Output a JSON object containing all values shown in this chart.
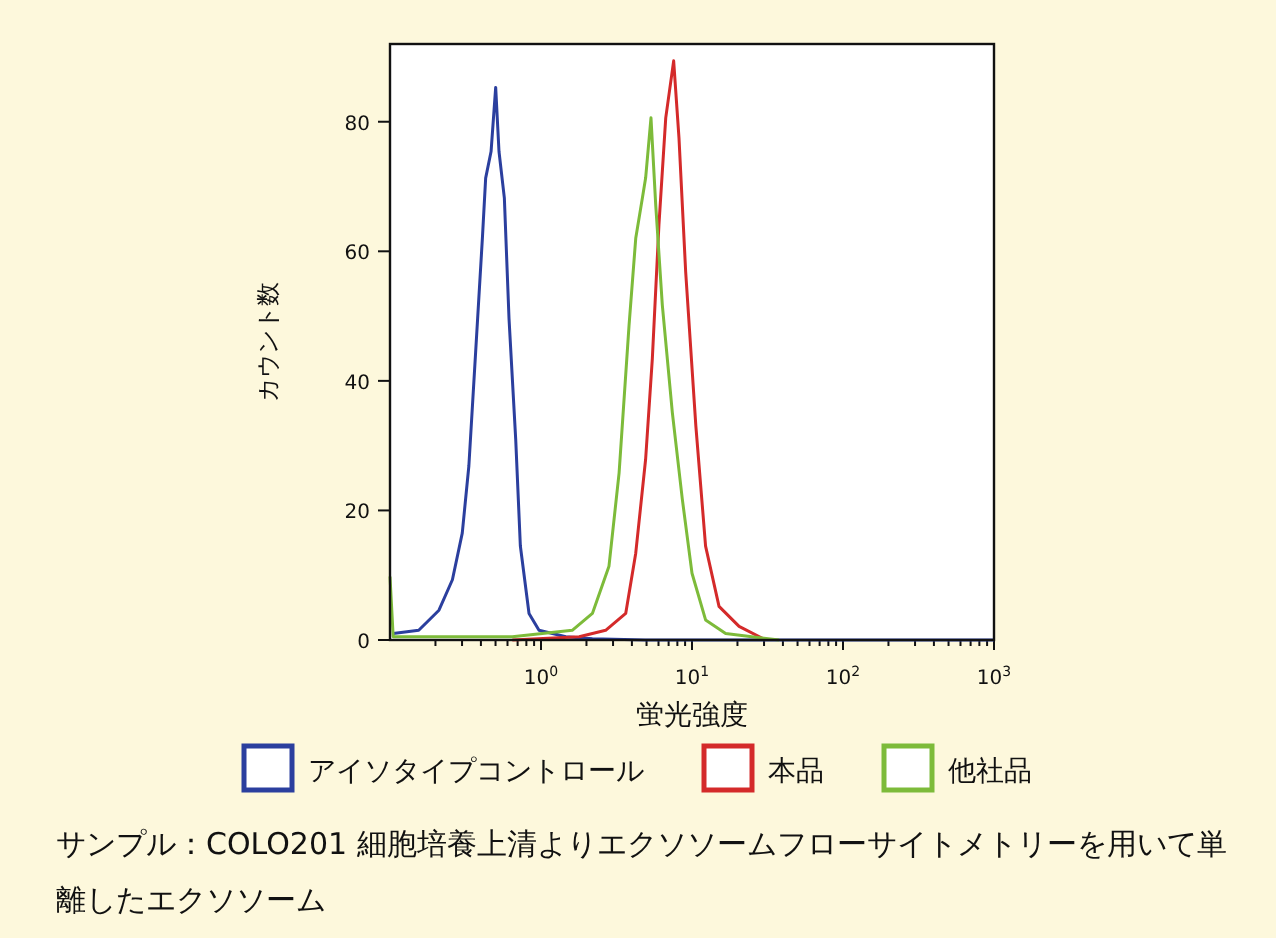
{
  "chart_data": {
    "type": "line",
    "xlabel": "蛍光強度",
    "ylabel": "カウント数",
    "log": "x",
    "legend": "bottom",
    "marker": "none",
    "line_style": "solid",
    "xlim": [
      0.1,
      1000
    ],
    "ylim": [
      0,
      92
    ],
    "xticks": [
      {
        "value": 0.2,
        "label": null
      },
      {
        "value": 0.3,
        "label": null
      },
      {
        "value": 0.4,
        "label": null
      },
      {
        "value": 0.5,
        "label": null
      },
      {
        "value": 0.6,
        "label": null
      },
      {
        "value": 0.7,
        "label": null
      },
      {
        "value": 0.8,
        "label": null
      },
      {
        "value": 0.9,
        "label": null
      },
      {
        "value": 1,
        "label": "10$^{0}$"
      },
      {
        "value": 2,
        "label": null
      },
      {
        "value": 3,
        "label": null
      },
      {
        "value": 4,
        "label": null
      },
      {
        "value": 5,
        "label": null
      },
      {
        "value": 6,
        "label": null
      },
      {
        "value": 7,
        "label": null
      },
      {
        "value": 8,
        "label": null
      },
      {
        "value": 9,
        "label": null
      },
      {
        "value": 10,
        "label": "10$^{1}$"
      },
      {
        "value": 20,
        "label": null
      },
      {
        "value": 30,
        "label": null
      },
      {
        "value": 40,
        "label": null
      },
      {
        "value": 50,
        "label": null
      },
      {
        "value": 60,
        "label": null
      },
      {
        "value": 70,
        "label": null
      },
      {
        "value": 80,
        "label": null
      },
      {
        "value": 90,
        "label": null
      },
      {
        "value": 100,
        "label": "10$^{2}$"
      },
      {
        "value": 200,
        "label": null
      },
      {
        "value": 300,
        "label": null
      },
      {
        "value": 400,
        "label": null
      },
      {
        "value": 500,
        "label": null
      },
      {
        "value": 600,
        "label": null
      },
      {
        "value": 700,
        "label": null
      },
      {
        "value": 800,
        "label": null
      },
      {
        "value": 900,
        "label": null
      },
      {
        "value": 1000,
        "label": "10$^{3}$"
      }
    ],
    "yticks": [
      0,
      20,
      40,
      60,
      80
    ],
    "series": [
      {
        "name": "アイソタイプコントロール",
        "color": "#2b3f9e",
        "x": [
          0.105,
          0.155,
          0.211,
          0.259,
          0.301,
          0.333,
          0.369,
          0.409,
          0.43,
          0.467,
          0.501,
          0.527,
          0.572,
          0.614,
          0.68,
          0.73,
          0.833,
          0.97,
          1.46,
          2.19,
          4.9,
          1000
        ],
        "values": [
          1,
          1.5,
          4.6,
          9.3,
          16.5,
          26.9,
          44.4,
          62,
          71.3,
          75.4,
          85.3,
          75.4,
          68.2,
          49.6,
          31,
          14.5,
          4.1,
          1.5,
          0.5,
          0.2,
          0,
          0
        ]
      },
      {
        "name": "本品",
        "color": "#d42a2a",
        "x": [
          0.646,
          1.79,
          2.68,
          3.64,
          4.24,
          4.93,
          5.46,
          6.04,
          6.7,
          7.56,
          8.2,
          9.08,
          10.6,
          12.3,
          15.1,
          20.5,
          30.8
        ],
        "values": [
          0,
          0.5,
          1.5,
          4.1,
          13.4,
          27.9,
          43.4,
          64.1,
          80.6,
          89.4,
          77.5,
          56.8,
          33.1,
          14.5,
          5.2,
          2.1,
          0
        ]
      },
      {
        "name": "他社品",
        "color": "#7dbb3a",
        "x": [
          0.1,
          0.105,
          0.646,
          1.61,
          2.19,
          2.82,
          3.29,
          3.83,
          4.24,
          4.69,
          4.93,
          5.35,
          5.75,
          6.36,
          7.41,
          8.63,
          10,
          12.3,
          16.7,
          37.7
        ],
        "values": [
          9.8,
          0.5,
          0.5,
          1.5,
          4.1,
          11.4,
          25.8,
          48.6,
          62,
          68.2,
          71.3,
          80.6,
          67.2,
          51.7,
          35.1,
          21.7,
          10.3,
          3.1,
          1,
          0
        ]
      }
    ],
    "annotations": [
      "サンプル：COLO201 細胞培養上清よりエクソソームフローサイトメトリーを用いて単離したエクソソーム"
    ]
  }
}
